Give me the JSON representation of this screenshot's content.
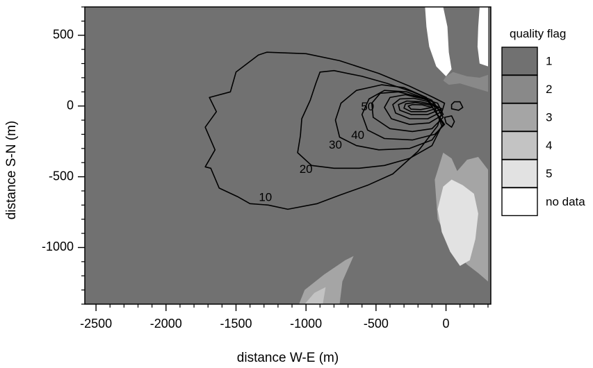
{
  "chart_data": {
    "type": "heatmap",
    "xlabel": "distance W-E (m)",
    "ylabel": "distance S-N (m)",
    "xlim": [
      -2580,
      320
    ],
    "ylim": [
      -1400,
      700
    ],
    "xticks": [
      {
        "value": -2500,
        "label": "-2500"
      },
      {
        "value": -2000,
        "label": "-2000"
      },
      {
        "value": -1500,
        "label": "-1500"
      },
      {
        "value": -1000,
        "label": "-1000"
      },
      {
        "value": -500,
        "label": "-500"
      },
      {
        "value": 0,
        "label": "0"
      }
    ],
    "yticks": [
      {
        "value": 500,
        "label": "500"
      },
      {
        "value": 0,
        "label": "0"
      },
      {
        "value": -500,
        "label": "-500"
      },
      {
        "value": -1000,
        "label": "-1000"
      }
    ],
    "background_flag": "1",
    "legend": {
      "title": "quality flag",
      "entries": [
        {
          "label": "1",
          "color": "#717171"
        },
        {
          "label": "2",
          "color": "#898989"
        },
        {
          "label": "3",
          "color": "#a5a5a5"
        },
        {
          "label": "4",
          "color": "#c3c3c3"
        },
        {
          "label": "5",
          "color": "#e2e2e2"
        },
        {
          "label": "no data",
          "color": "#ffffff"
        }
      ]
    },
    "flag_regions": [
      {
        "flag": "no data",
        "points": [
          [
            -150,
            700
          ],
          [
            -20,
            700
          ],
          [
            10,
            560
          ],
          [
            20,
            380
          ],
          [
            40,
            260
          ],
          [
            0,
            210
          ],
          [
            -70,
            280
          ],
          [
            -120,
            420
          ],
          [
            -140,
            560
          ]
        ]
      },
      {
        "flag": "no data",
        "points": [
          [
            240,
            700
          ],
          [
            300,
            700
          ],
          [
            300,
            280
          ],
          [
            240,
            300
          ],
          [
            225,
            420
          ],
          [
            230,
            560
          ]
        ]
      },
      {
        "flag": "2",
        "points": [
          [
            0,
            210
          ],
          [
            50,
            240
          ],
          [
            150,
            210
          ],
          [
            240,
            200
          ],
          [
            300,
            220
          ],
          [
            300,
            100
          ],
          [
            200,
            130
          ],
          [
            100,
            160
          ],
          [
            20,
            150
          ],
          [
            -20,
            180
          ]
        ]
      },
      {
        "flag": "3",
        "points": [
          [
            -20,
            -330
          ],
          [
            40,
            -370
          ],
          [
            80,
            -460
          ],
          [
            150,
            -380
          ],
          [
            230,
            -360
          ],
          [
            300,
            -450
          ],
          [
            300,
            -1240
          ],
          [
            230,
            -1180
          ],
          [
            150,
            -1120
          ],
          [
            40,
            -1000
          ],
          [
            -60,
            -800
          ],
          [
            -80,
            -520
          ]
        ]
      },
      {
        "flag": "5",
        "points": [
          [
            -20,
            -570
          ],
          [
            40,
            -520
          ],
          [
            120,
            -560
          ],
          [
            200,
            -620
          ],
          [
            230,
            -760
          ],
          [
            210,
            -940
          ],
          [
            170,
            -1090
          ],
          [
            100,
            -1130
          ],
          [
            30,
            -1030
          ],
          [
            -30,
            -890
          ],
          [
            -60,
            -730
          ]
        ]
      },
      {
        "flag": "3",
        "points": [
          [
            -1050,
            -1400
          ],
          [
            -760,
            -1400
          ],
          [
            -740,
            -1240
          ],
          [
            -660,
            -1060
          ],
          [
            -720,
            -1090
          ],
          [
            -870,
            -1190
          ],
          [
            -1010,
            -1300
          ]
        ]
      },
      {
        "flag": "4",
        "points": [
          [
            -1010,
            -1400
          ],
          [
            -880,
            -1400
          ],
          [
            -860,
            -1280
          ],
          [
            -940,
            -1320
          ]
        ]
      }
    ],
    "contours": [
      {
        "level": 10,
        "label": "10",
        "label_pos": [
          -1290,
          -650
        ],
        "points": [
          [
            -60,
            -140
          ],
          [
            -200,
            -320
          ],
          [
            -380,
            -480
          ],
          [
            -560,
            -560
          ],
          [
            -760,
            -630
          ],
          [
            -920,
            -690
          ],
          [
            -1130,
            -730
          ],
          [
            -1270,
            -700
          ],
          [
            -1400,
            -690
          ],
          [
            -1490,
            -640
          ],
          [
            -1620,
            -580
          ],
          [
            -1680,
            -440
          ],
          [
            -1720,
            -430
          ],
          [
            -1650,
            -310
          ],
          [
            -1720,
            -150
          ],
          [
            -1640,
            -40
          ],
          [
            -1690,
            60
          ],
          [
            -1540,
            100
          ],
          [
            -1500,
            240
          ],
          [
            -1340,
            360
          ],
          [
            -1280,
            380
          ],
          [
            -1000,
            370
          ],
          [
            -760,
            320
          ],
          [
            -480,
            230
          ],
          [
            -260,
            140
          ],
          [
            -90,
            60
          ],
          [
            -10,
            20
          ]
        ]
      },
      {
        "level": 20,
        "label": "20",
        "label_pos": [
          -1000,
          -450
        ],
        "points": [
          [
            -30,
            -140
          ],
          [
            -100,
            -280
          ],
          [
            -260,
            -370
          ],
          [
            -440,
            -420
          ],
          [
            -620,
            -440
          ],
          [
            -800,
            -440
          ],
          [
            -960,
            -420
          ],
          [
            -1060,
            -330
          ],
          [
            -1040,
            -210
          ],
          [
            -1030,
            -90
          ],
          [
            -970,
            40
          ],
          [
            -930,
            160
          ],
          [
            -900,
            240
          ],
          [
            -800,
            250
          ],
          [
            -600,
            210
          ],
          [
            -420,
            160
          ],
          [
            -240,
            100
          ],
          [
            -100,
            40
          ]
        ]
      },
      {
        "level": 30,
        "label": "30",
        "label_pos": [
          -790,
          -280
        ],
        "points": [
          [
            -20,
            -130
          ],
          [
            -100,
            -240
          ],
          [
            -260,
            -300
          ],
          [
            -480,
            -310
          ],
          [
            -640,
            -280
          ],
          [
            -760,
            -220
          ],
          [
            -790,
            -100
          ],
          [
            -750,
            20
          ],
          [
            -640,
            110
          ],
          [
            -460,
            150
          ],
          [
            -300,
            130
          ],
          [
            -140,
            60
          ]
        ]
      },
      {
        "level": 40,
        "label": "40",
        "label_pos": [
          -630,
          -210
        ],
        "points": [
          [
            -10,
            -130
          ],
          [
            -80,
            -200
          ],
          [
            -240,
            -240
          ],
          [
            -440,
            -230
          ],
          [
            -560,
            -170
          ],
          [
            -600,
            -60
          ],
          [
            -550,
            50
          ],
          [
            -440,
            110
          ],
          [
            -280,
            100
          ],
          [
            -140,
            50
          ]
        ]
      },
      {
        "level": 50,
        "label": "50",
        "label_pos": [
          -560,
          -10
        ],
        "points": [
          [
            -20,
            -80
          ],
          [
            -100,
            -160
          ],
          [
            -240,
            -180
          ],
          [
            -400,
            -160
          ],
          [
            -520,
            -80
          ],
          [
            -530,
            20
          ],
          [
            -470,
            90
          ],
          [
            -340,
            100
          ],
          [
            -220,
            70
          ],
          [
            -90,
            30
          ]
        ]
      },
      {
        "level": 60,
        "points": [
          [
            -20,
            -60
          ],
          [
            -120,
            -120
          ],
          [
            -260,
            -130
          ],
          [
            -390,
            -90
          ],
          [
            -440,
            -10
          ],
          [
            -400,
            60
          ],
          [
            -290,
            80
          ],
          [
            -160,
            50
          ],
          [
            -60,
            20
          ]
        ]
      },
      {
        "level": 70,
        "points": [
          [
            -30,
            -40
          ],
          [
            -130,
            -90
          ],
          [
            -260,
            -90
          ],
          [
            -360,
            -50
          ],
          [
            -380,
            10
          ],
          [
            -330,
            50
          ],
          [
            -230,
            55
          ],
          [
            -120,
            30
          ]
        ]
      },
      {
        "level": 80,
        "points": [
          [
            -30,
            -20
          ],
          [
            -130,
            -60
          ],
          [
            -250,
            -60
          ],
          [
            -330,
            -30
          ],
          [
            -340,
            10
          ],
          [
            -280,
            35
          ],
          [
            -180,
            30
          ],
          [
            -90,
            10
          ]
        ]
      },
      {
        "level": 90,
        "points": [
          [
            -50,
            -10
          ],
          [
            -140,
            -40
          ],
          [
            -250,
            -40
          ],
          [
            -300,
            -15
          ],
          [
            -290,
            15
          ],
          [
            -220,
            25
          ],
          [
            -130,
            10
          ]
        ]
      },
      {
        "level": 100,
        "points": [
          [
            -100,
            -10
          ],
          [
            -180,
            -25
          ],
          [
            -250,
            -22
          ],
          [
            -270,
            0
          ],
          [
            -240,
            10
          ],
          [
            -170,
            8
          ]
        ]
      },
      {
        "level": 40,
        "points": [
          [
            -10,
            -80
          ],
          [
            40,
            -70
          ],
          [
            60,
            -110
          ],
          [
            40,
            -150
          ],
          [
            0,
            -120
          ]
        ]
      },
      {
        "level": 20,
        "points": [
          [
            40,
            -20
          ],
          [
            90,
            -30
          ],
          [
            120,
            -10
          ],
          [
            100,
            30
          ],
          [
            60,
            30
          ],
          [
            40,
            10
          ]
        ]
      }
    ]
  }
}
